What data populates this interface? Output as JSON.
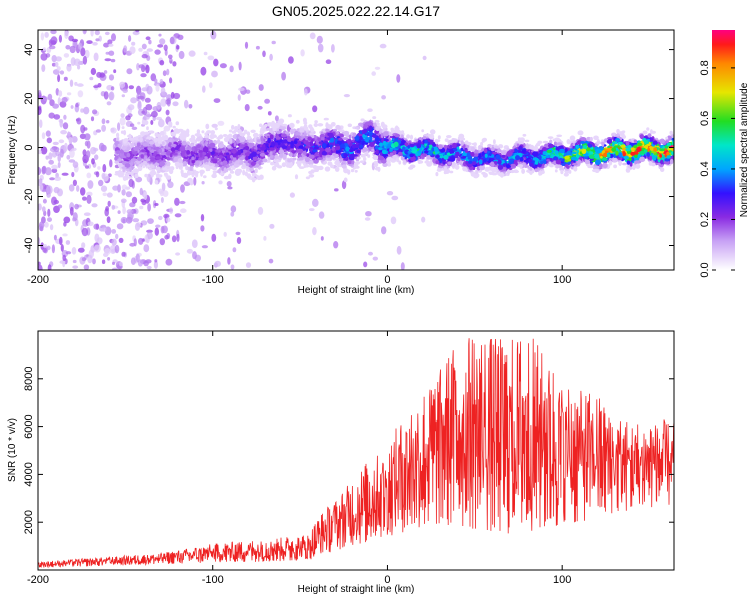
{
  "title": "GN05.2025.022.22.14.G17",
  "chart_data": [
    {
      "type": "heatmap",
      "xlabel": "Height of straight line (km)",
      "ylabel": "Frequency (Hz)",
      "colorbar_label": "Normalized spectral amplitude",
      "xlim": [
        -200,
        164
      ],
      "ylim": [
        -50,
        48
      ],
      "xticks": [
        -200,
        -100,
        0,
        100
      ],
      "yticks": [
        -40,
        -20,
        0,
        20,
        40
      ],
      "colorbar_range": [
        0,
        0.95
      ],
      "colorbar_ticks": [
        0.0,
        0.2,
        0.4,
        0.6,
        0.8
      ],
      "ridge": {
        "x": [
          -200,
          -150,
          -120,
          -100,
          -80,
          -65,
          -60,
          -50,
          -40,
          -20,
          -8,
          -5,
          0,
          20,
          40,
          60,
          80,
          100,
          120,
          140,
          164
        ],
        "y": [
          0,
          -3,
          -2,
          -3,
          -2,
          0,
          4,
          -1,
          1,
          0,
          5,
          2,
          0,
          -1,
          -3,
          -5,
          -4,
          -3,
          -2,
          -1,
          -1
        ],
        "peak": [
          0.1,
          0.2,
          0.22,
          0.24,
          0.27,
          0.3,
          0.28,
          0.3,
          0.34,
          0.4,
          0.42,
          0.42,
          0.5,
          0.55,
          0.45,
          0.4,
          0.45,
          0.62,
          0.78,
          0.88,
          0.92
        ]
      }
    },
    {
      "type": "line",
      "xlabel": "Height of straight line (km)",
      "ylabel": "SNR (10 * v/v)",
      "xlim": [
        -200,
        164
      ],
      "ylim": [
        0,
        10000
      ],
      "xticks": [
        -200,
        -100,
        0,
        100
      ],
      "yticks": [
        2000,
        4000,
        6000,
        8000
      ],
      "color": "#ee2222",
      "envelope": {
        "x": [
          -200,
          -150,
          -130,
          -100,
          -70,
          -45,
          -40,
          -30,
          -20,
          -10,
          0,
          10,
          20,
          30,
          40,
          50,
          60,
          70,
          80,
          90,
          100,
          110,
          120,
          130,
          140,
          150,
          164
        ],
        "low": [
          100,
          200,
          250,
          300,
          350,
          400,
          600,
          800,
          1000,
          1200,
          1400,
          1600,
          1800,
          1900,
          1800,
          1700,
          1600,
          1500,
          1600,
          1700,
          1800,
          2000,
          2200,
          2400,
          2500,
          2600,
          2700
        ],
        "high": [
          350,
          600,
          700,
          1100,
          1300,
          1500,
          2200,
          3000,
          3800,
          4700,
          5200,
          6700,
          7500,
          8400,
          9700,
          10000,
          9800,
          9700,
          10000,
          9200,
          8000,
          7500,
          7400,
          6500,
          6200,
          6300,
          6300
        ]
      }
    }
  ]
}
